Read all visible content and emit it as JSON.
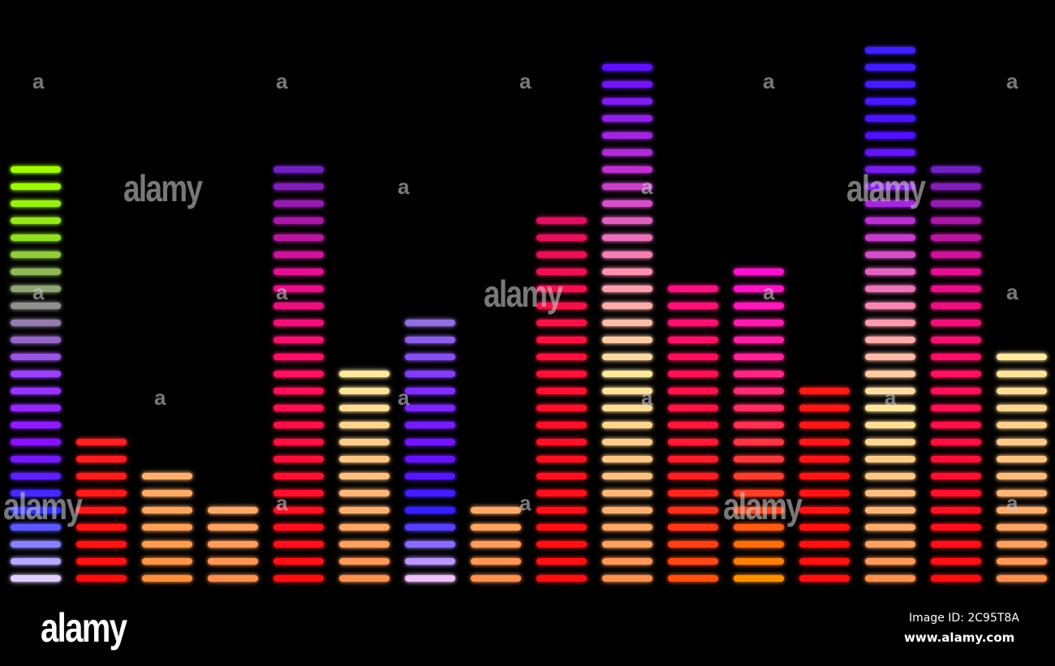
{
  "equalizer": {
    "columns": [
      {
        "segments": 25,
        "colors": [
          "#e0d0ff",
          "#3030ff",
          "#8a10ff",
          "#9a40ff",
          "#909090",
          "#90e020",
          "#a0ff00"
        ]
      },
      {
        "segments": 9,
        "colors": [
          "#ff1010",
          "#ff2020"
        ]
      },
      {
        "segments": 7,
        "colors": [
          "#ff9040",
          "#ffb070"
        ]
      },
      {
        "segments": 5,
        "colors": [
          "#ff9050",
          "#ffa868"
        ]
      },
      {
        "segments": 25,
        "colors": [
          "#ff1010",
          "#ff1030",
          "#ff1060",
          "#e01090",
          "#7020c0"
        ]
      },
      {
        "segments": 13,
        "colors": [
          "#ff9050",
          "#ffc080",
          "#ffe8a0"
        ]
      },
      {
        "segments": 16,
        "colors": [
          "#f0c0ff",
          "#3020ff",
          "#7010ff",
          "#8030ff",
          "#9070e0"
        ]
      },
      {
        "segments": 5,
        "colors": [
          "#ff9050",
          "#ffa868"
        ]
      },
      {
        "segments": 22,
        "colors": [
          "#ff1010",
          "#ff1020",
          "#ff1040",
          "#e01060"
        ]
      },
      {
        "segments": 31,
        "colors": [
          "#ff9050",
          "#ffc080",
          "#ffe8a0",
          "#ff90b0",
          "#c030d0",
          "#6010ff"
        ]
      },
      {
        "segments": 18,
        "colors": [
          "#ff5010",
          "#ff2020",
          "#ff1050",
          "#ff1080"
        ]
      },
      {
        "segments": 19,
        "colors": [
          "#ff9000",
          "#ff4020",
          "#ff3050",
          "#ff20a0",
          "#ff10d0"
        ]
      },
      {
        "segments": 12,
        "colors": [
          "#ff1010",
          "#ff1818"
        ]
      },
      {
        "segments": 32,
        "colors": [
          "#ff9050",
          "#ffc080",
          "#ffe8a0",
          "#ff90b0",
          "#c030d0",
          "#5010ff",
          "#4020ff"
        ]
      },
      {
        "segments": 25,
        "colors": [
          "#ff1010",
          "#ff1030",
          "#ff1060",
          "#e01090",
          "#7020c0"
        ]
      },
      {
        "segments": 14,
        "colors": [
          "#ff9050",
          "#ffc080",
          "#ffe8a0"
        ]
      }
    ]
  },
  "watermark": {
    "text": "alamy",
    "letter": "a",
    "logo": "alamy",
    "image_id": "Image ID: 2C95T8A",
    "site": "www.alamy.com"
  }
}
